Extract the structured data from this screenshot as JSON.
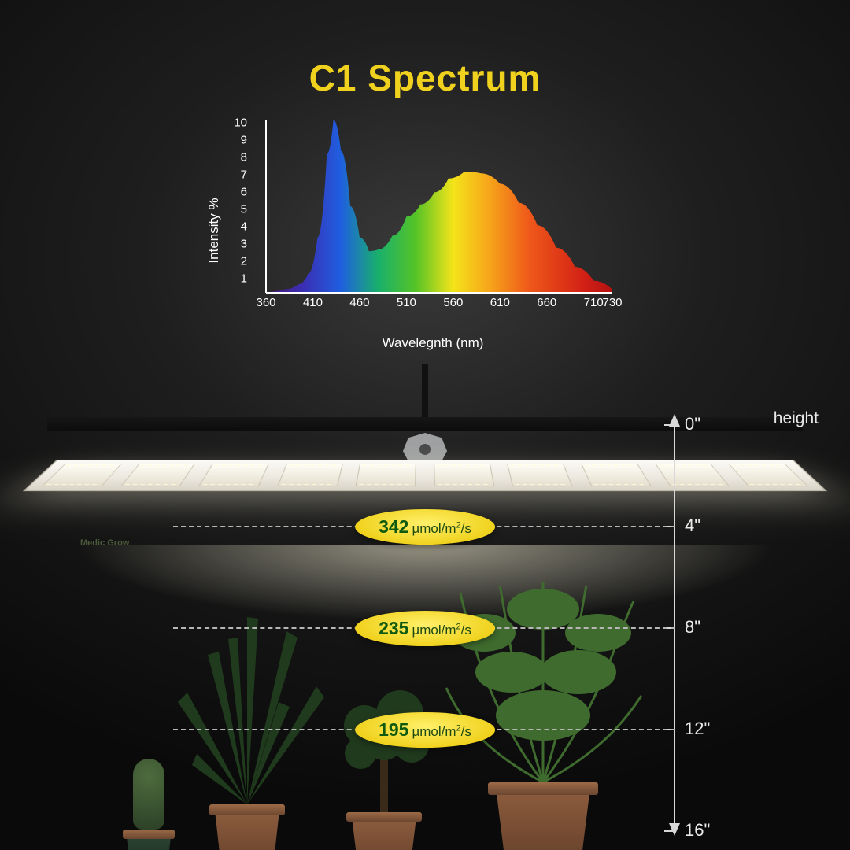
{
  "title": {
    "text": "C1 Spectrum",
    "color": "#f0d21e",
    "fontsize": 46
  },
  "spectrum_chart": {
    "type": "area-spectrum",
    "x_label": "Wavelegnth (nm)",
    "y_label": "Intensity %",
    "label_fontsize": 17,
    "tick_fontsize": 15,
    "axis_color": "#ffffff",
    "xlim": [
      360,
      730
    ],
    "ylim": [
      0,
      10
    ],
    "x_ticks": [
      360,
      410,
      460,
      510,
      560,
      610,
      660,
      710,
      730
    ],
    "y_ticks": [
      1,
      2,
      3,
      4,
      5,
      6,
      7,
      8,
      9,
      10
    ],
    "curve_points_nm_intensity": [
      [
        360,
        0.05
      ],
      [
        380,
        0.2
      ],
      [
        395,
        0.5
      ],
      [
        405,
        1.1
      ],
      [
        415,
        3.2
      ],
      [
        425,
        8.0
      ],
      [
        432,
        10.0
      ],
      [
        440,
        8.2
      ],
      [
        450,
        5.0
      ],
      [
        460,
        3.2
      ],
      [
        470,
        2.4
      ],
      [
        480,
        2.5
      ],
      [
        495,
        3.3
      ],
      [
        510,
        4.4
      ],
      [
        525,
        5.1
      ],
      [
        540,
        5.8
      ],
      [
        555,
        6.6
      ],
      [
        572,
        7.0
      ],
      [
        590,
        6.9
      ],
      [
        610,
        6.3
      ],
      [
        630,
        5.2
      ],
      [
        650,
        3.9
      ],
      [
        670,
        2.6
      ],
      [
        690,
        1.5
      ],
      [
        710,
        0.7
      ],
      [
        730,
        0.2
      ]
    ],
    "gradient_stops": [
      {
        "nm": 360,
        "color": "#4a1a7a"
      },
      {
        "nm": 400,
        "color": "#3a2fb4"
      },
      {
        "nm": 440,
        "color": "#1f5fe0"
      },
      {
        "nm": 480,
        "color": "#19b06c"
      },
      {
        "nm": 520,
        "color": "#55c326"
      },
      {
        "nm": 560,
        "color": "#f4e41a"
      },
      {
        "nm": 600,
        "color": "#f6a31a"
      },
      {
        "nm": 640,
        "color": "#ef5a1a"
      },
      {
        "nm": 700,
        "color": "#d22015"
      },
      {
        "nm": 730,
        "color": "#b31212"
      }
    ],
    "background_color": "transparent"
  },
  "fixture": {
    "brand": "Medic Grow",
    "bar_count": 10,
    "panel_color": "#f2efe6",
    "bar_color": "#efe9d7"
  },
  "height_axis": {
    "label": "height",
    "unit": "\"",
    "axis_color": "#d8d8d8",
    "dash_color": "#b6b6b6",
    "tick_fontsize": 22,
    "ticks_in": [
      0,
      4,
      8,
      12,
      16
    ]
  },
  "ppfd_badges": {
    "unit": "µmol/m²/s",
    "value_color": "#0f5a0f",
    "unit_color": "#1e4a12",
    "bg_color": "#f0d21e",
    "value_fontsize": 23,
    "unit_fontsize": 17,
    "items": [
      {
        "height_in": 4,
        "value": 342
      },
      {
        "height_in": 8,
        "value": 235
      },
      {
        "height_in": 12,
        "value": 195
      }
    ]
  }
}
